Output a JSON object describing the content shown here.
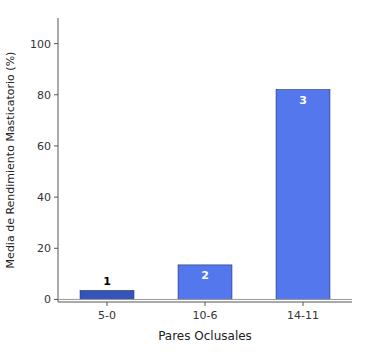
{
  "chart_data": {
    "type": "bar",
    "xlabel": "Pares Oclusales",
    "ylabel": "Media de Rendimiento Masticatorio (%)",
    "categories": [
      "5-0",
      "10-6",
      "14-11"
    ],
    "values": [
      3.5,
      13.5,
      82.0
    ],
    "annotations": [
      "1",
      "2",
      "3"
    ],
    "colors": [
      "#3355bb",
      "#5577ee",
      "#5577ee"
    ],
    "ylim": [
      -1,
      110
    ],
    "yticks": [
      0,
      20,
      40,
      60,
      80,
      100
    ],
    "grid": false
  }
}
